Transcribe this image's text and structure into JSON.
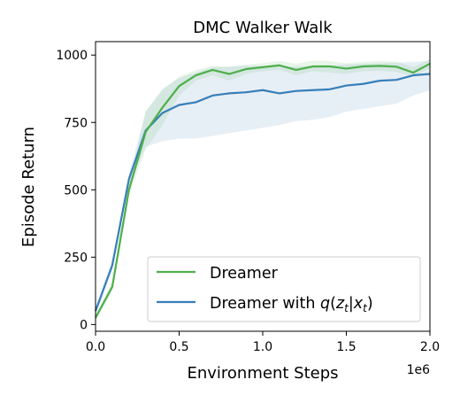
{
  "chart_data": {
    "type": "line",
    "title": "DMC Walker Walk",
    "xlabel": "Environment Steps",
    "ylabel": "Episode Return",
    "x_scale_label": "1e6",
    "xlim": [
      0,
      2.0
    ],
    "ylim": [
      -25,
      1050
    ],
    "xticks": [
      0.0,
      0.5,
      1.0,
      1.5,
      2.0
    ],
    "xtick_labels": [
      "0.0",
      "0.5",
      "1.0",
      "1.5",
      "2.0"
    ],
    "yticks": [
      0,
      250,
      500,
      750,
      1000
    ],
    "ytick_labels": [
      "0",
      "250",
      "500",
      "750",
      "1000"
    ],
    "legend_position": "lower-right",
    "series": [
      {
        "name": "Dreamer",
        "color": "#4daf4a",
        "x": [
          0.0,
          0.1,
          0.2,
          0.3,
          0.4,
          0.5,
          0.6,
          0.7,
          0.8,
          0.9,
          1.0,
          1.1,
          1.2,
          1.3,
          1.4,
          1.5,
          1.6,
          1.7,
          1.8,
          1.9,
          2.0
        ],
        "y": [
          25,
          140,
          500,
          715,
          805,
          885,
          925,
          945,
          930,
          948,
          955,
          962,
          945,
          958,
          958,
          950,
          958,
          960,
          957,
          935,
          968
        ],
        "lower": [
          15,
          120,
          480,
          650,
          740,
          850,
          905,
          925,
          905,
          930,
          940,
          945,
          925,
          940,
          935,
          930,
          940,
          942,
          938,
          920,
          950
        ],
        "upper": [
          35,
          160,
          520,
          790,
          870,
          920,
          945,
          960,
          955,
          965,
          970,
          978,
          968,
          980,
          978,
          970,
          975,
          978,
          976,
          955,
          985
        ]
      },
      {
        "name_prefix": "Dreamer with ",
        "color": "#377eb8",
        "x": [
          0.0,
          0.1,
          0.2,
          0.3,
          0.4,
          0.5,
          0.6,
          0.7,
          0.8,
          0.9,
          1.0,
          1.1,
          1.2,
          1.3,
          1.4,
          1.5,
          1.6,
          1.7,
          1.8,
          1.9,
          2.0
        ],
        "y": [
          50,
          220,
          540,
          720,
          785,
          815,
          825,
          850,
          858,
          862,
          870,
          858,
          867,
          870,
          873,
          887,
          893,
          905,
          908,
          925,
          930
        ],
        "lower": [
          40,
          200,
          520,
          660,
          680,
          690,
          690,
          700,
          710,
          720,
          730,
          740,
          755,
          760,
          770,
          790,
          800,
          810,
          820,
          850,
          870
        ],
        "upper": [
          60,
          240,
          560,
          790,
          875,
          915,
          935,
          955,
          958,
          960,
          960,
          958,
          958,
          960,
          962,
          965,
          968,
          970,
          972,
          975,
          978
        ]
      }
    ]
  }
}
